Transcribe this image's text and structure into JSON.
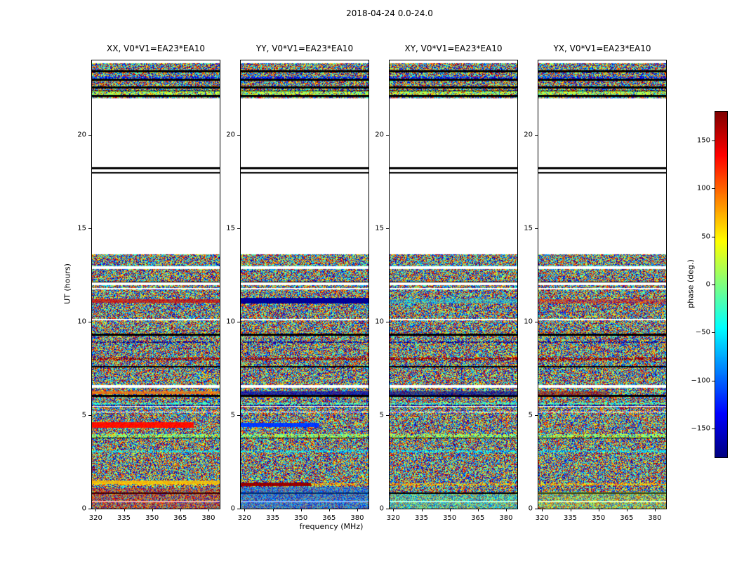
{
  "suptitle": "2018-04-24 0.0-24.0",
  "chart_data": {
    "type": "heatmap",
    "title": "2018-04-24 0.0-24.0",
    "xlabel": "frequency (MHz)",
    "ylabel": "UT (hours)",
    "colorbar_label": "phase (deg.)",
    "colormap": "jet",
    "xlim": [
      318,
      386
    ],
    "ylim": [
      0,
      24
    ],
    "clim": [
      -180,
      180
    ],
    "x_ticks": [
      320,
      335,
      350,
      365,
      380
    ],
    "y_ticks": [
      0,
      5,
      10,
      15,
      20
    ],
    "colorbar_ticks": [
      -150,
      -100,
      -50,
      0,
      50,
      100,
      150
    ],
    "row_seed": 7,
    "time_bands": [
      {
        "from": 0.0,
        "to": 13.62,
        "type": "noise"
      },
      {
        "from": 13.62,
        "to": 21.95,
        "type": "blank"
      },
      {
        "from": 21.95,
        "to": 23.9,
        "type": "noise"
      },
      {
        "from": 23.9,
        "to": 24.0,
        "type": "blank"
      }
    ],
    "flag_lines": [
      6.05,
      7.6,
      9.32,
      17.98,
      18.22,
      22.1,
      22.55,
      22.95,
      23.4
    ],
    "gap_lines": [
      6.55,
      12.05,
      12.9
    ],
    "panels": [
      {
        "title": "XX, V0*V1=EA23*EA10",
        "noise_seed": 11,
        "stripes": [
          {
            "y0": 4.33,
            "y1": 4.62,
            "value": 130,
            "xfrac": 0.8,
            "mix": 1.0
          },
          {
            "y0": 1.33,
            "y1": 1.52,
            "value": 65,
            "xfrac": 1.0,
            "mix": 0.85
          },
          {
            "y0": 6.12,
            "y1": 6.3,
            "value": 95,
            "xfrac": 1.0,
            "mix": 0.75
          },
          {
            "y0": 11.02,
            "y1": 11.22,
            "value": 150,
            "xfrac": 1.0,
            "mix": 0.7
          },
          {
            "y0": 0.0,
            "y1": 1.1,
            "value": 150,
            "xfrac": 1.0,
            "mix": 0.3
          }
        ]
      },
      {
        "title": "YY, V0*V1=EA23*EA10",
        "noise_seed": 22,
        "stripes": [
          {
            "y0": 4.36,
            "y1": 4.6,
            "value": -115,
            "xfrac": 0.62,
            "mix": 1.0
          },
          {
            "y0": 10.98,
            "y1": 11.3,
            "value": -172,
            "xfrac": 1.0,
            "mix": 1.0
          },
          {
            "y0": 1.22,
            "y1": 1.38,
            "value": 172,
            "xfrac": 0.55,
            "mix": 1.0
          },
          {
            "y0": 0.0,
            "y1": 1.15,
            "value": -100,
            "xfrac": 1.0,
            "mix": 0.45
          },
          {
            "y0": 6.1,
            "y1": 6.28,
            "value": -165,
            "xfrac": 1.0,
            "mix": 0.7
          }
        ]
      },
      {
        "title": "XY, V0*V1=EA23*EA10",
        "noise_seed": 33,
        "stripes": [
          {
            "y0": 6.05,
            "y1": 6.28,
            "value": -178,
            "xfrac": 1.0,
            "mix": 0.6
          },
          {
            "y0": 0.0,
            "y1": 0.8,
            "value": -25,
            "xfrac": 1.0,
            "mix": 0.35
          },
          {
            "y0": 11.0,
            "y1": 11.2,
            "value": -60,
            "xfrac": 1.0,
            "mix": 0.4
          }
        ]
      },
      {
        "title": "YX, V0*V1=EA23*EA10",
        "noise_seed": 44,
        "stripes": [
          {
            "y0": 6.05,
            "y1": 6.28,
            "value": 170,
            "xfrac": 0.55,
            "mix": 0.5
          },
          {
            "y0": 0.0,
            "y1": 0.9,
            "value": 20,
            "xfrac": 1.0,
            "mix": 0.3
          },
          {
            "y0": 11.0,
            "y1": 11.2,
            "value": 140,
            "xfrac": 1.0,
            "mix": 0.4
          }
        ]
      }
    ]
  }
}
